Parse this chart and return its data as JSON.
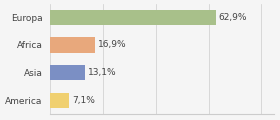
{
  "categories": [
    "Europa",
    "Africa",
    "Asia",
    "America"
  ],
  "values": [
    62.9,
    16.9,
    13.1,
    7.1
  ],
  "labels": [
    "62,9%",
    "16,9%",
    "13,1%",
    "7,1%"
  ],
  "bar_colors": [
    "#a8c08a",
    "#e8a87c",
    "#7b8fc4",
    "#f0d070"
  ],
  "background_color": "#f5f5f5",
  "xlim": [
    0,
    85
  ],
  "label_fontsize": 6.5,
  "tick_fontsize": 6.5
}
